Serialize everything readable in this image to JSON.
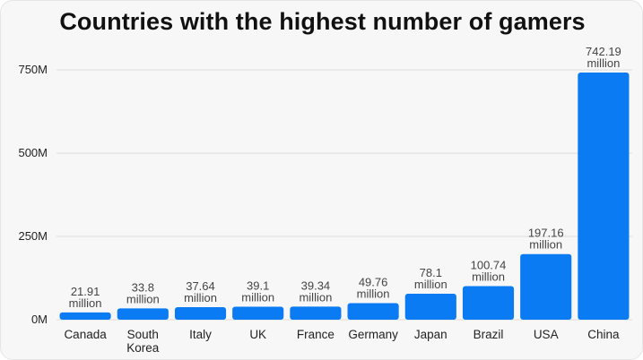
{
  "chart_data": {
    "type": "bar",
    "title": "Countries with the highest number of gamers",
    "xlabel": "",
    "ylabel": "",
    "ylim": [
      0,
      780
    ],
    "yticks": [
      {
        "value": 0,
        "label": "0M"
      },
      {
        "value": 250,
        "label": "250M"
      },
      {
        "value": 500,
        "label": "500M"
      },
      {
        "value": 750,
        "label": "750M"
      }
    ],
    "grid": true,
    "legend": "none",
    "bar_color": "#0a7bf2",
    "categories": [
      "Canada",
      "South Korea",
      "Italy",
      "UK",
      "France",
      "Germany",
      "Japan",
      "Brazil",
      "USA",
      "China"
    ],
    "category_lines": [
      [
        "Canada"
      ],
      [
        "South",
        "Korea"
      ],
      [
        "Italy"
      ],
      [
        "UK"
      ],
      [
        "France"
      ],
      [
        "Germany"
      ],
      [
        "Japan"
      ],
      [
        "Brazil"
      ],
      [
        "USA"
      ],
      [
        "China"
      ]
    ],
    "values": [
      21.91,
      33.8,
      37.64,
      39.1,
      39.34,
      49.76,
      78.1,
      100.74,
      197.16,
      742.19
    ],
    "value_labels": [
      [
        "21.91",
        "million"
      ],
      [
        "33.8",
        "million"
      ],
      [
        "37.64",
        "million"
      ],
      [
        "39.1",
        "million"
      ],
      [
        "39.34",
        "million"
      ],
      [
        "49.76",
        "million"
      ],
      [
        "78.1",
        "million"
      ],
      [
        "100.74",
        "million"
      ],
      [
        "197.16",
        "million"
      ],
      [
        "742.19",
        "million"
      ]
    ]
  }
}
